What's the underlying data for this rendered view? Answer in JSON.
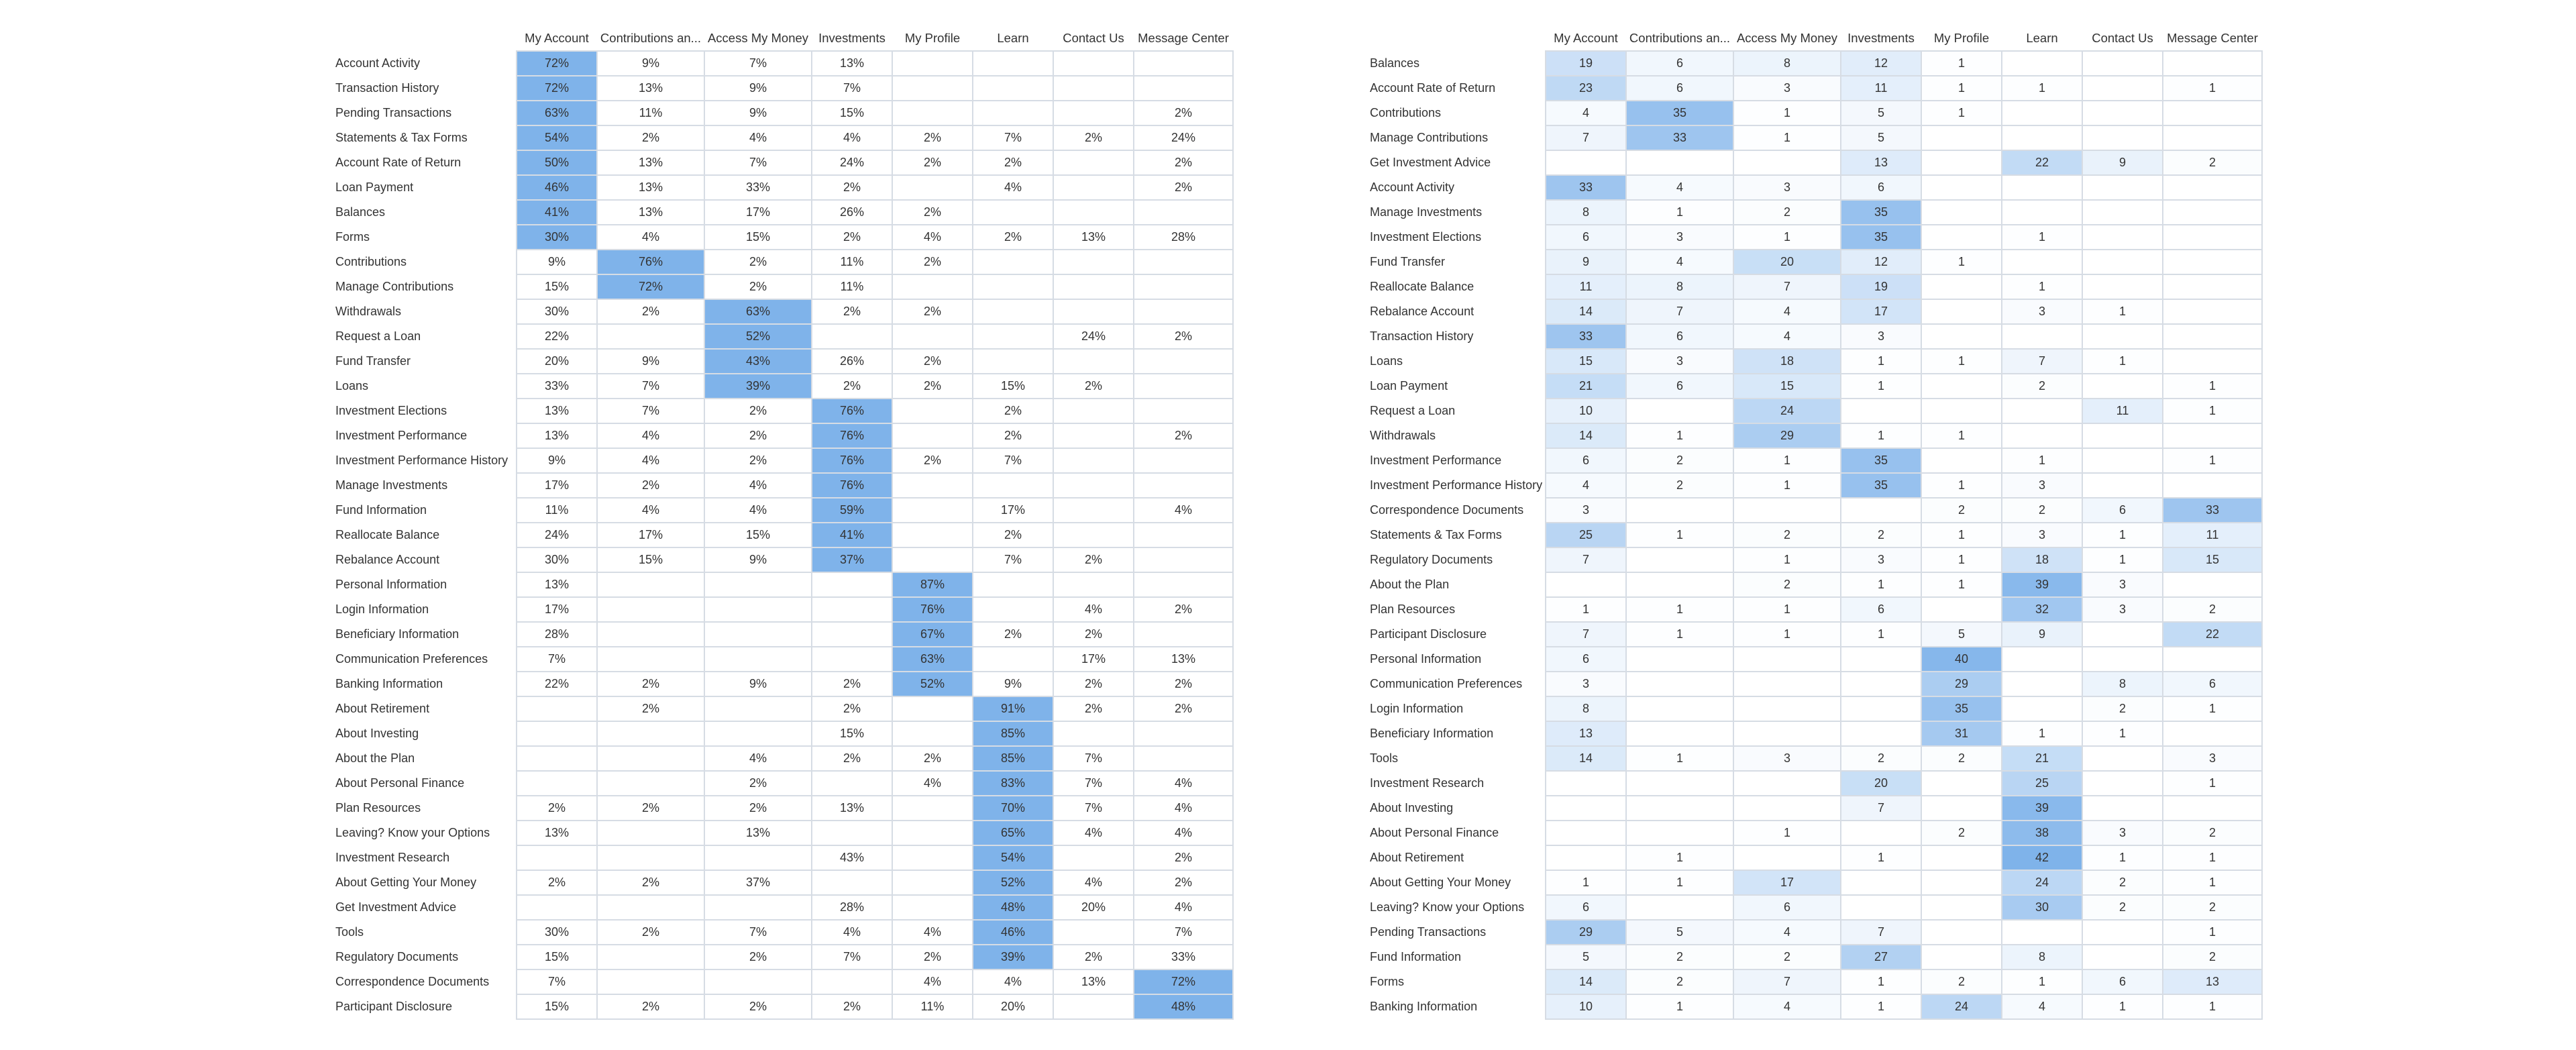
{
  "colors": {
    "grid_border": "#d6dce4",
    "heat_low": "#ffffff",
    "heat_high": "#7fb3ea",
    "text": "#333333"
  },
  "chart_data": [
    {
      "type": "heatmap",
      "value_format": "percent",
      "columns": [
        "My Account",
        "Contributions an...",
        "Access My Money",
        "Investments",
        "My Profile",
        "Learn",
        "Contact Us",
        "Message Center"
      ],
      "rows": [
        "Account Activity",
        "Transaction History",
        "Pending Transactions",
        "Statements & Tax Forms",
        "Account Rate of Return",
        "Loan Payment",
        "Balances",
        "Forms",
        "Contributions",
        "Manage Contributions",
        "Withdrawals",
        "Request a Loan",
        "Fund Transfer",
        "Loans",
        "Investment Elections",
        "Investment Performance",
        "Investment Performance History",
        "Manage Investments",
        "Fund Information",
        "Reallocate Balance",
        "Rebalance Account",
        "Personal Information",
        "Login Information",
        "Beneficiary Information",
        "Communication Preferences",
        "Banking Information",
        "About Retirement",
        "About Investing",
        "About the Plan",
        "About Personal Finance",
        "Plan Resources",
        "Leaving? Know your Options",
        "Investment Research",
        "About Getting Your Money",
        "Get Investment Advice",
        "Tools",
        "Regulatory Documents",
        "Correspondence Documents",
        "Participant Disclosure"
      ],
      "values": [
        [
          72,
          9,
          7,
          13,
          null,
          null,
          null,
          null
        ],
        [
          72,
          13,
          9,
          7,
          null,
          null,
          null,
          null
        ],
        [
          63,
          11,
          9,
          15,
          null,
          null,
          null,
          2
        ],
        [
          54,
          2,
          4,
          4,
          2,
          7,
          2,
          24
        ],
        [
          50,
          13,
          7,
          24,
          2,
          2,
          null,
          2
        ],
        [
          46,
          13,
          33,
          2,
          null,
          4,
          null,
          2
        ],
        [
          41,
          13,
          17,
          26,
          2,
          null,
          null,
          null
        ],
        [
          30,
          4,
          15,
          2,
          4,
          2,
          13,
          28
        ],
        [
          9,
          76,
          2,
          11,
          2,
          null,
          null,
          null
        ],
        [
          15,
          72,
          2,
          11,
          null,
          null,
          null,
          null
        ],
        [
          30,
          2,
          63,
          2,
          2,
          null,
          null,
          null
        ],
        [
          22,
          null,
          52,
          null,
          null,
          null,
          24,
          2
        ],
        [
          20,
          9,
          43,
          26,
          2,
          null,
          null,
          null
        ],
        [
          33,
          7,
          39,
          2,
          2,
          15,
          2,
          null
        ],
        [
          13,
          7,
          2,
          76,
          null,
          2,
          null,
          null
        ],
        [
          13,
          4,
          2,
          76,
          null,
          2,
          null,
          2
        ],
        [
          9,
          4,
          2,
          76,
          2,
          7,
          null,
          null
        ],
        [
          17,
          2,
          4,
          76,
          null,
          null,
          null,
          null
        ],
        [
          11,
          4,
          4,
          59,
          null,
          17,
          null,
          4
        ],
        [
          24,
          17,
          15,
          41,
          null,
          2,
          null,
          null
        ],
        [
          30,
          15,
          9,
          37,
          null,
          7,
          2,
          null
        ],
        [
          13,
          null,
          null,
          null,
          87,
          null,
          null,
          null
        ],
        [
          17,
          null,
          null,
          null,
          76,
          null,
          4,
          2
        ],
        [
          28,
          null,
          null,
          null,
          67,
          2,
          2,
          null
        ],
        [
          7,
          null,
          null,
          null,
          63,
          null,
          17,
          13
        ],
        [
          22,
          2,
          9,
          2,
          52,
          9,
          2,
          2
        ],
        [
          null,
          2,
          null,
          2,
          null,
          91,
          2,
          2
        ],
        [
          null,
          null,
          null,
          15,
          null,
          85,
          null,
          null
        ],
        [
          null,
          null,
          4,
          2,
          2,
          85,
          7,
          null
        ],
        [
          null,
          null,
          2,
          null,
          4,
          83,
          7,
          4
        ],
        [
          2,
          2,
          2,
          13,
          null,
          70,
          7,
          4
        ],
        [
          13,
          null,
          13,
          null,
          null,
          65,
          4,
          4
        ],
        [
          null,
          null,
          null,
          43,
          null,
          54,
          null,
          2
        ],
        [
          2,
          2,
          37,
          null,
          null,
          52,
          4,
          2
        ],
        [
          null,
          null,
          null,
          28,
          null,
          48,
          20,
          4
        ],
        [
          30,
          2,
          7,
          4,
          4,
          46,
          null,
          7
        ],
        [
          15,
          null,
          2,
          7,
          2,
          39,
          2,
          33
        ],
        [
          7,
          null,
          null,
          null,
          4,
          4,
          13,
          72
        ],
        [
          15,
          2,
          2,
          2,
          11,
          20,
          null,
          48
        ]
      ]
    },
    {
      "type": "heatmap",
      "value_format": "count",
      "columns": [
        "My Account",
        "Contributions an...",
        "Access My Money",
        "Investments",
        "My Profile",
        "Learn",
        "Contact Us",
        "Message Center"
      ],
      "rows": [
        "Balances",
        "Account Rate of Return",
        "Contributions",
        "Manage Contributions",
        "Get Investment Advice",
        "Account Activity",
        "Manage Investments",
        "Investment Elections",
        "Fund Transfer",
        "Reallocate Balance",
        "Rebalance Account",
        "Transaction History",
        "Loans",
        "Loan Payment",
        "Request a Loan",
        "Withdrawals",
        "Investment Performance",
        "Investment Performance History",
        "Correspondence Documents",
        "Statements & Tax Forms",
        "Regulatory Documents",
        "About the Plan",
        "Plan Resources",
        "Participant Disclosure",
        "Personal Information",
        "Communication Preferences",
        "Login Information",
        "Beneficiary Information",
        "Tools",
        "Investment Research",
        "About Investing",
        "About Personal Finance",
        "About Retirement",
        "About Getting Your Money",
        "Leaving? Know your Options",
        "Pending Transactions",
        "Fund Information",
        "Forms",
        "Banking Information"
      ],
      "values": [
        [
          19,
          6,
          8,
          12,
          1,
          null,
          null,
          null
        ],
        [
          23,
          6,
          3,
          11,
          1,
          1,
          null,
          1
        ],
        [
          4,
          35,
          1,
          5,
          1,
          null,
          null,
          null
        ],
        [
          7,
          33,
          1,
          5,
          null,
          null,
          null,
          null
        ],
        [
          null,
          null,
          null,
          13,
          null,
          22,
          9,
          2
        ],
        [
          33,
          4,
          3,
          6,
          null,
          null,
          null,
          null
        ],
        [
          8,
          1,
          2,
          35,
          null,
          null,
          null,
          null
        ],
        [
          6,
          3,
          1,
          35,
          null,
          1,
          null,
          null
        ],
        [
          9,
          4,
          20,
          12,
          1,
          null,
          null,
          null
        ],
        [
          11,
          8,
          7,
          19,
          null,
          1,
          null,
          null
        ],
        [
          14,
          7,
          4,
          17,
          null,
          3,
          1,
          null
        ],
        [
          33,
          6,
          4,
          3,
          null,
          null,
          null,
          null
        ],
        [
          15,
          3,
          18,
          1,
          1,
          7,
          1,
          null
        ],
        [
          21,
          6,
          15,
          1,
          null,
          2,
          null,
          1
        ],
        [
          10,
          null,
          24,
          null,
          null,
          null,
          11,
          1
        ],
        [
          14,
          1,
          29,
          1,
          1,
          null,
          null,
          null
        ],
        [
          6,
          2,
          1,
          35,
          null,
          1,
          null,
          1
        ],
        [
          4,
          2,
          1,
          35,
          1,
          3,
          null,
          null
        ],
        [
          3,
          null,
          null,
          null,
          2,
          2,
          6,
          33
        ],
        [
          25,
          1,
          2,
          2,
          1,
          3,
          1,
          11
        ],
        [
          7,
          null,
          1,
          3,
          1,
          18,
          1,
          15
        ],
        [
          null,
          null,
          2,
          1,
          1,
          39,
          3,
          null
        ],
        [
          1,
          1,
          1,
          6,
          null,
          32,
          3,
          2
        ],
        [
          7,
          1,
          1,
          1,
          5,
          9,
          null,
          22
        ],
        [
          6,
          null,
          null,
          null,
          40,
          null,
          null,
          null
        ],
        [
          3,
          null,
          null,
          null,
          29,
          null,
          8,
          6
        ],
        [
          8,
          null,
          null,
          null,
          35,
          null,
          2,
          1
        ],
        [
          13,
          null,
          null,
          null,
          31,
          1,
          1,
          null
        ],
        [
          14,
          1,
          3,
          2,
          2,
          21,
          null,
          3
        ],
        [
          null,
          null,
          null,
          20,
          null,
          25,
          null,
          1
        ],
        [
          null,
          null,
          null,
          7,
          null,
          39,
          null,
          null
        ],
        [
          null,
          null,
          1,
          null,
          2,
          38,
          3,
          2
        ],
        [
          null,
          1,
          null,
          1,
          null,
          42,
          1,
          1
        ],
        [
          1,
          1,
          17,
          null,
          null,
          24,
          2,
          1
        ],
        [
          6,
          null,
          6,
          null,
          null,
          30,
          2,
          2
        ],
        [
          29,
          5,
          4,
          7,
          null,
          null,
          null,
          1
        ],
        [
          5,
          2,
          2,
          27,
          null,
          8,
          null,
          2
        ],
        [
          14,
          2,
          7,
          1,
          2,
          1,
          6,
          13
        ],
        [
          10,
          1,
          4,
          1,
          24,
          4,
          1,
          1
        ]
      ]
    }
  ]
}
